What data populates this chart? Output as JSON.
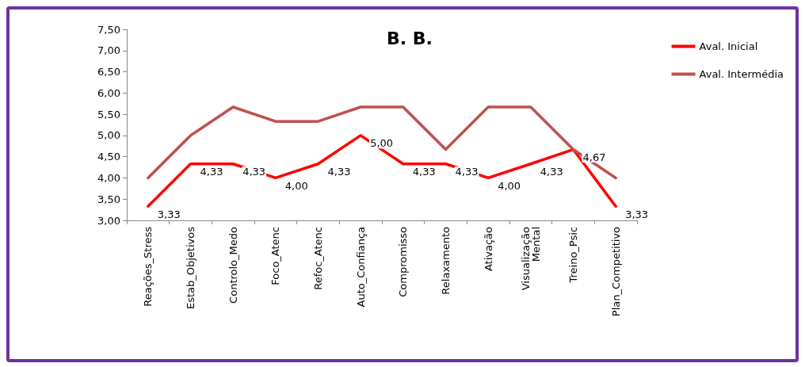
{
  "chart_data": {
    "type": "line",
    "title": "B. B.",
    "categories": [
      "Reações_Stress",
      "Estab_Objetivos",
      "Controlo_Medo",
      "Foco_Atenc",
      "Refoc_Atenc",
      "Auto_Confiança",
      "Compromisso",
      "Relaxamento",
      "Ativação",
      "Visualização Mental",
      "Treino_Psic",
      "Plan_Competitivo"
    ],
    "series": [
      {
        "name": "Aval. Inicial",
        "color": "#ff0000",
        "values": [
          3.33,
          4.33,
          4.33,
          4.0,
          4.33,
          5.0,
          4.33,
          4.33,
          4.0,
          4.33,
          4.67,
          3.33
        ],
        "value_labels": [
          "3,33",
          "4,33",
          "4,33",
          "4,00",
          "4,33",
          "5,00",
          "4,33",
          "4,33",
          "4,00",
          "4,33",
          "4,67",
          "3,33"
        ]
      },
      {
        "name": "Aval. Intermédia",
        "color": "#c0504d",
        "values": [
          4.0,
          5.0,
          5.67,
          5.33,
          5.33,
          5.67,
          5.67,
          4.67,
          5.67,
          5.67,
          4.67,
          4.0
        ]
      }
    ],
    "ylim": [
      3,
      7.5
    ],
    "yticks": [
      {
        "value": 3,
        "label": "3,00"
      },
      {
        "value": 3.5,
        "label": "3,50"
      },
      {
        "value": 4,
        "label": "4,00"
      },
      {
        "value": 4.5,
        "label": "4,50"
      },
      {
        "value": 5,
        "label": "5,00"
      },
      {
        "value": 5.5,
        "label": "5,50"
      },
      {
        "value": 6,
        "label": "6,00"
      },
      {
        "value": 6.5,
        "label": "6,50"
      },
      {
        "value": 7,
        "label": "7,00"
      },
      {
        "value": 7.5,
        "label": "7,50"
      }
    ],
    "grid": false,
    "legend": "top right",
    "marker": "none",
    "line_style": "solid"
  }
}
